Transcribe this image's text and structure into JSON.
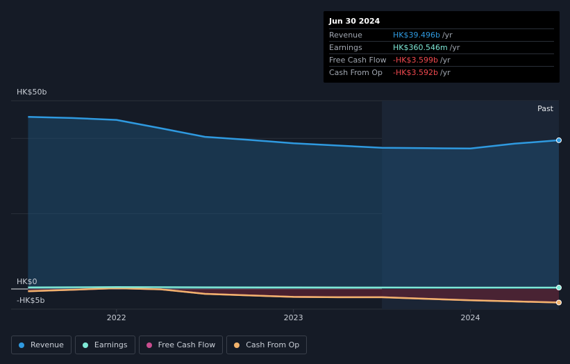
{
  "tooltip": {
    "date": "Jun 30 2024",
    "rows": [
      {
        "label": "Revenue",
        "value": "HK$39.496b",
        "unit": "/yr",
        "color": "#2f9ae0"
      },
      {
        "label": "Earnings",
        "value": "HK$360.546m",
        "unit": "/yr",
        "color": "#7ee8d6"
      },
      {
        "label": "Free Cash Flow",
        "value": "-HK$3.599b",
        "unit": "/yr",
        "color": "#f0494f"
      },
      {
        "label": "Cash From Op",
        "value": "-HK$3.592b",
        "unit": "/yr",
        "color": "#f0494f"
      }
    ]
  },
  "legend": [
    {
      "label": "Revenue",
      "color": "#2f9ae0"
    },
    {
      "label": "Earnings",
      "color": "#7ee8d6"
    },
    {
      "label": "Free Cash Flow",
      "color": "#c94d8f"
    },
    {
      "label": "Cash From Op",
      "color": "#f2b36c"
    }
  ],
  "chart_data": {
    "type": "line",
    "y_top_label": "HK$50b",
    "y_zero_label": "HK$0",
    "y_bottom_label": "-HK$5b",
    "past_label": "Past",
    "ylim": [
      -5,
      50
    ],
    "xlim": [
      2021.53,
      2024.5
    ],
    "x_ticks": [
      2022,
      2023,
      2024
    ],
    "x_tick_labels": [
      "2022",
      "2023",
      "2024"
    ],
    "past_from": 2023.5,
    "series": [
      {
        "name": "Revenue",
        "color": "#2f9ae0",
        "x": [
          2021.5,
          2021.75,
          2022.0,
          2022.25,
          2022.5,
          2022.75,
          2023.0,
          2023.25,
          2023.5,
          2023.75,
          2024.0,
          2024.25,
          2024.5
        ],
        "y": [
          45.7,
          45.4,
          44.9,
          42.7,
          40.4,
          39.6,
          38.7,
          38.1,
          37.5,
          37.4,
          37.3,
          38.6,
          39.5
        ]
      },
      {
        "name": "Earnings",
        "color": "#7ee8d6",
        "x": [
          2021.5,
          2022.0,
          2022.5,
          2023.0,
          2023.5,
          2024.0,
          2024.5
        ],
        "y": [
          0.4,
          0.5,
          0.45,
          0.4,
          0.38,
          0.37,
          0.36
        ]
      },
      {
        "name": "Free Cash Flow",
        "color": "#c94d8f",
        "x": [
          2021.5,
          2021.75,
          2022.0,
          2022.25,
          2022.5,
          2022.75,
          2023.0,
          2023.25,
          2023.5,
          2023.75,
          2024.0,
          2024.25,
          2024.5
        ],
        "y": [
          -0.6,
          -0.2,
          0.2,
          -0.1,
          -1.3,
          -1.7,
          -2.1,
          -2.2,
          -2.2,
          -2.6,
          -3.0,
          -3.3,
          -3.6
        ]
      },
      {
        "name": "Cash From Op",
        "color": "#f2b36c",
        "x": [
          2021.5,
          2021.75,
          2022.0,
          2022.25,
          2022.5,
          2022.75,
          2023.0,
          2023.25,
          2023.5,
          2023.75,
          2024.0,
          2024.25,
          2024.5
        ],
        "y": [
          -0.6,
          -0.2,
          0.2,
          -0.1,
          -1.3,
          -1.7,
          -2.1,
          -2.2,
          -2.2,
          -2.6,
          -3.0,
          -3.3,
          -3.6
        ]
      }
    ]
  }
}
